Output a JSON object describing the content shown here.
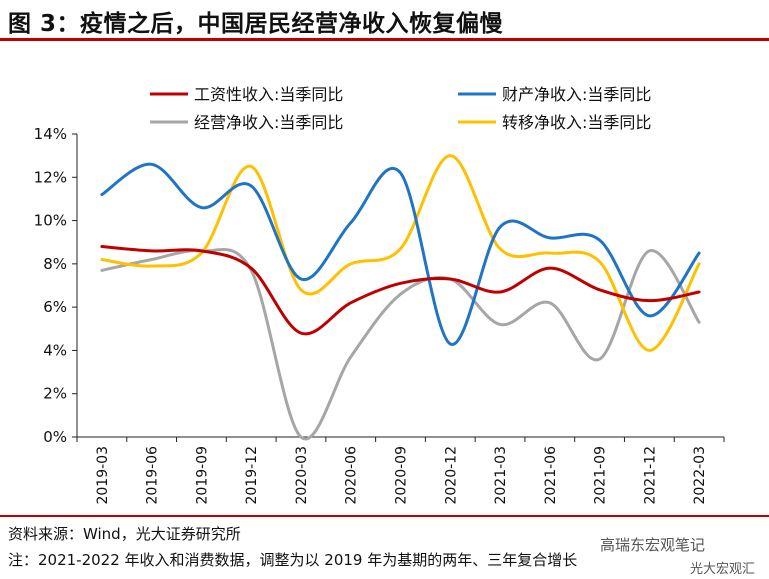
{
  "header": {
    "title": "图 3：疫情之后，中国居民经营净收入恢复偏慢"
  },
  "footer": {
    "source": "资料来源：Wind，光大证券研究所",
    "note": "注：2021-2022 年收入和消费数据，调整为以 2019 年为基期的两年、三年复合增长",
    "watermark": "高瑞东宏观笔记",
    "watermark2": "光大宏观汇"
  },
  "colors": {
    "wage": "#c00000",
    "property": "#1f74c6",
    "business": "#a6a6a6",
    "transfer": "#ffc000",
    "accent": "#c00000"
  },
  "chart_data": {
    "type": "line",
    "categories": [
      "2019-03",
      "2019-06",
      "2019-09",
      "2019-12",
      "2020-03",
      "2020-06",
      "2020-09",
      "2020-12",
      "2021-03",
      "2021-06",
      "2021-09",
      "2021-12",
      "2022-03"
    ],
    "ylim": [
      0,
      14
    ],
    "yticks": [
      "0%",
      "2%",
      "4%",
      "6%",
      "8%",
      "10%",
      "12%",
      "14%"
    ],
    "legend_position": "top",
    "grid": false,
    "series": [
      {
        "name": "工资性收入:当季同比",
        "color_key": "wage",
        "values": [
          8.8,
          8.6,
          8.6,
          7.8,
          4.8,
          6.2,
          7.1,
          7.3,
          6.7,
          7.8,
          6.8,
          6.3,
          6.7
        ]
      },
      {
        "name": "财产净收入:当季同比",
        "color_key": "property",
        "values": [
          11.2,
          12.6,
          10.6,
          11.6,
          7.3,
          9.9,
          12.2,
          4.3,
          9.7,
          9.2,
          9.1,
          5.6,
          8.5
        ]
      },
      {
        "name": "经营净收入:当季同比",
        "color_key": "business",
        "values": [
          7.7,
          8.2,
          8.6,
          7.7,
          0.0,
          3.7,
          6.6,
          7.3,
          5.2,
          6.2,
          3.6,
          8.6,
          5.3
        ]
      },
      {
        "name": "转移净收入:当季同比",
        "color_key": "transfer",
        "values": [
          8.2,
          7.9,
          8.5,
          12.5,
          6.8,
          8.0,
          8.7,
          13.0,
          8.7,
          8.5,
          8.1,
          4.0,
          8.0
        ]
      }
    ]
  }
}
